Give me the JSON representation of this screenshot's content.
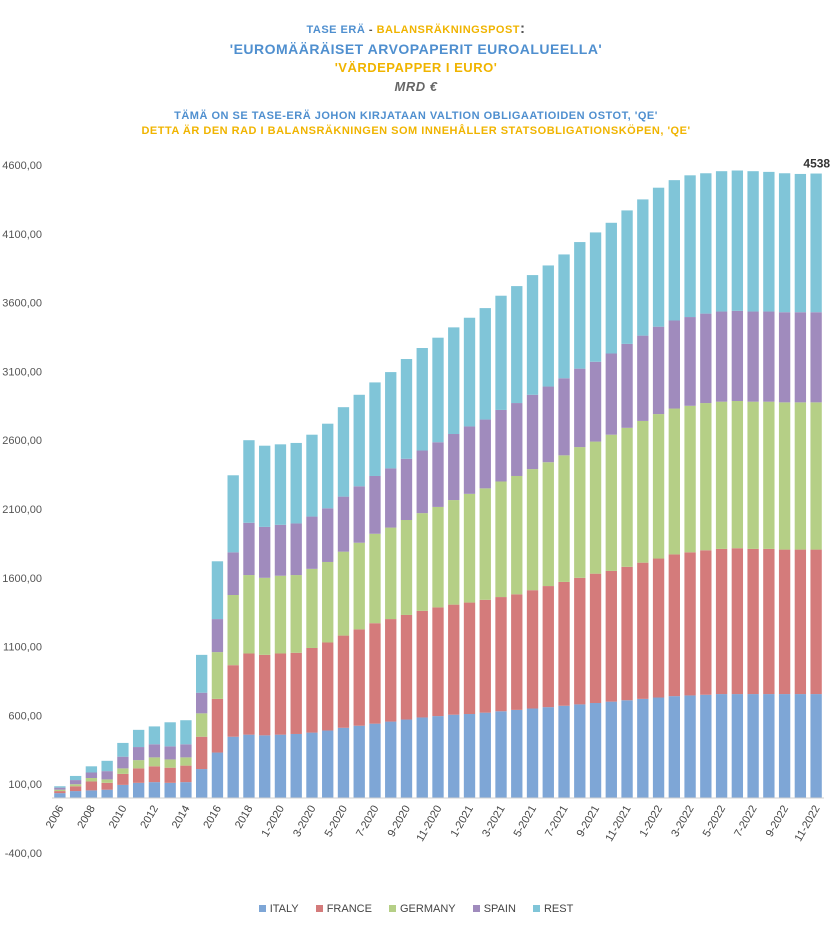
{
  "titles": {
    "line1_fi": "TASE ERÄ",
    "line1_sep": " - ",
    "line1_sv": "BALANSRÄKNINGSPOST",
    "line1_colon": ":",
    "line2": "'EUROMÄÄRÄISET ARVOPAPERIT EUROALUEELLA'",
    "line3": "'VÄRDEPAPPER I EURO'",
    "line4": "MRD €",
    "line5": "TÄMÄ ON SE TASE-ERÄ JOHON KIRJATAAN VALTION OBLIGAATIOIDEN OSTOT, 'QE'",
    "line6": "DETTA ÄR DEN RAD I BALANSRÄKNINGEN SOM INNEHÅLLER STATSOBLIGATIONSKÖPEN, 'QE'"
  },
  "chart_data": {
    "type": "bar",
    "stacked": true,
    "grid": false,
    "legend_position": "bottom",
    "annotation": "4538",
    "ylim": [
      -400,
      4600
    ],
    "yticks": [
      "-400,00",
      "100,00",
      "600,00",
      "1100,00",
      "1600,00",
      "2100,00",
      "2600,00",
      "3100,00",
      "3600,00",
      "4100,00",
      "4600,00"
    ],
    "ytick_values": [
      -400,
      100,
      600,
      1100,
      1600,
      2100,
      2600,
      3100,
      3600,
      4100,
      4600
    ],
    "categories": [
      "2006",
      "2007",
      "2008",
      "2009",
      "2010",
      "2011",
      "2012",
      "2013",
      "2014",
      "2015",
      "2016",
      "2017",
      "2018",
      "2019",
      "1-2020",
      "2-2020",
      "3-2020",
      "4-2020",
      "5-2020",
      "6-2020",
      "7-2020",
      "8-2020",
      "9-2020",
      "10-2020",
      "11-2020",
      "12-2020",
      "1-2021",
      "2-2021",
      "3-2021",
      "4-2021",
      "5-2021",
      "6-2021",
      "7-2021",
      "8-2021",
      "9-2021",
      "10-2021",
      "11-2021",
      "12-2021",
      "1-2022",
      "2-2022",
      "3-2022",
      "4-2022",
      "5-2022",
      "6-2022",
      "7-2022",
      "8-2022",
      "9-2022",
      "10-2022",
      "11-2022"
    ],
    "tick_labels": [
      "2006",
      "",
      "2008",
      "",
      "2010",
      "",
      "2012",
      "",
      "2014",
      "",
      "2016",
      "",
      "2018",
      "",
      "1-2020",
      "",
      "3-2020",
      "",
      "5-2020",
      "",
      "7-2020",
      "",
      "9-2020",
      "",
      "11-2020",
      "",
      "1-2021",
      "",
      "3-2021",
      "",
      "5-2021",
      "",
      "7-2021",
      "",
      "9-2021",
      "",
      "11-2021",
      "",
      "1-2022",
      "",
      "3-2022",
      "",
      "5-2022",
      "",
      "7-2022",
      "",
      "9-2022",
      "",
      "11-2022"
    ],
    "series": [
      {
        "name": "ITALY",
        "color": "#7ea6d6",
        "values": [
          35,
          50,
          55,
          60,
          95,
          110,
          115,
          110,
          115,
          210,
          330,
          445,
          460,
          455,
          460,
          465,
          475,
          490,
          510,
          525,
          540,
          555,
          570,
          585,
          595,
          605,
          610,
          620,
          630,
          640,
          650,
          660,
          670,
          680,
          690,
          700,
          710,
          720,
          730,
          740,
          745,
          750,
          755,
          755,
          755,
          755,
          755,
          755,
          755
        ]
      },
      {
        "name": "FRANCE",
        "color": "#d47b7b",
        "values": [
          15,
          35,
          65,
          50,
          80,
          105,
          115,
          110,
          120,
          235,
          390,
          520,
          590,
          585,
          590,
          590,
          615,
          640,
          670,
          700,
          730,
          745,
          760,
          775,
          790,
          800,
          810,
          820,
          830,
          840,
          860,
          880,
          900,
          920,
          940,
          950,
          970,
          990,
          1010,
          1030,
          1040,
          1050,
          1055,
          1060,
          1055,
          1055,
          1050,
          1050,
          1050
        ]
      },
      {
        "name": "GERMANY",
        "color": "#b5cf86",
        "values": [
          10,
          15,
          25,
          25,
          40,
          60,
          65,
          60,
          60,
          170,
          340,
          510,
          570,
          560,
          565,
          565,
          575,
          585,
          610,
          630,
          650,
          665,
          690,
          710,
          730,
          760,
          790,
          810,
          840,
          860,
          880,
          900,
          920,
          950,
          960,
          990,
          1010,
          1030,
          1050,
          1060,
          1065,
          1070,
          1070,
          1070,
          1070,
          1070,
          1070,
          1070,
          1070
        ]
      },
      {
        "name": "SPAIN",
        "color": "#a08bbd",
        "values": [
          15,
          30,
          40,
          60,
          85,
          95,
          95,
          95,
          95,
          150,
          240,
          310,
          380,
          370,
          370,
          375,
          380,
          390,
          400,
          410,
          420,
          430,
          445,
          455,
          470,
          480,
          490,
          500,
          520,
          530,
          540,
          550,
          560,
          570,
          580,
          590,
          610,
          620,
          635,
          640,
          645,
          650,
          655,
          655,
          655,
          655,
          655,
          655,
          655
        ]
      },
      {
        "name": "REST",
        "color": "#80c5d8",
        "values": [
          10,
          30,
          45,
          75,
          100,
          125,
          130,
          175,
          175,
          275,
          420,
          560,
          600,
          590,
          585,
          585,
          595,
          615,
          650,
          665,
          680,
          700,
          725,
          745,
          760,
          775,
          790,
          810,
          830,
          850,
          870,
          880,
          900,
          920,
          940,
          950,
          970,
          990,
          1010,
          1020,
          1030,
          1020,
          1020,
          1020,
          1020,
          1015,
          1010,
          1005,
          1008
        ]
      }
    ]
  },
  "legend": [
    {
      "label": "ITALY",
      "color": "#7ea6d6"
    },
    {
      "label": "FRANCE",
      "color": "#d47b7b"
    },
    {
      "label": "GERMANY",
      "color": "#b5cf86"
    },
    {
      "label": "SPAIN",
      "color": "#a08bbd"
    },
    {
      "label": "REST",
      "color": "#80c5d8"
    }
  ]
}
